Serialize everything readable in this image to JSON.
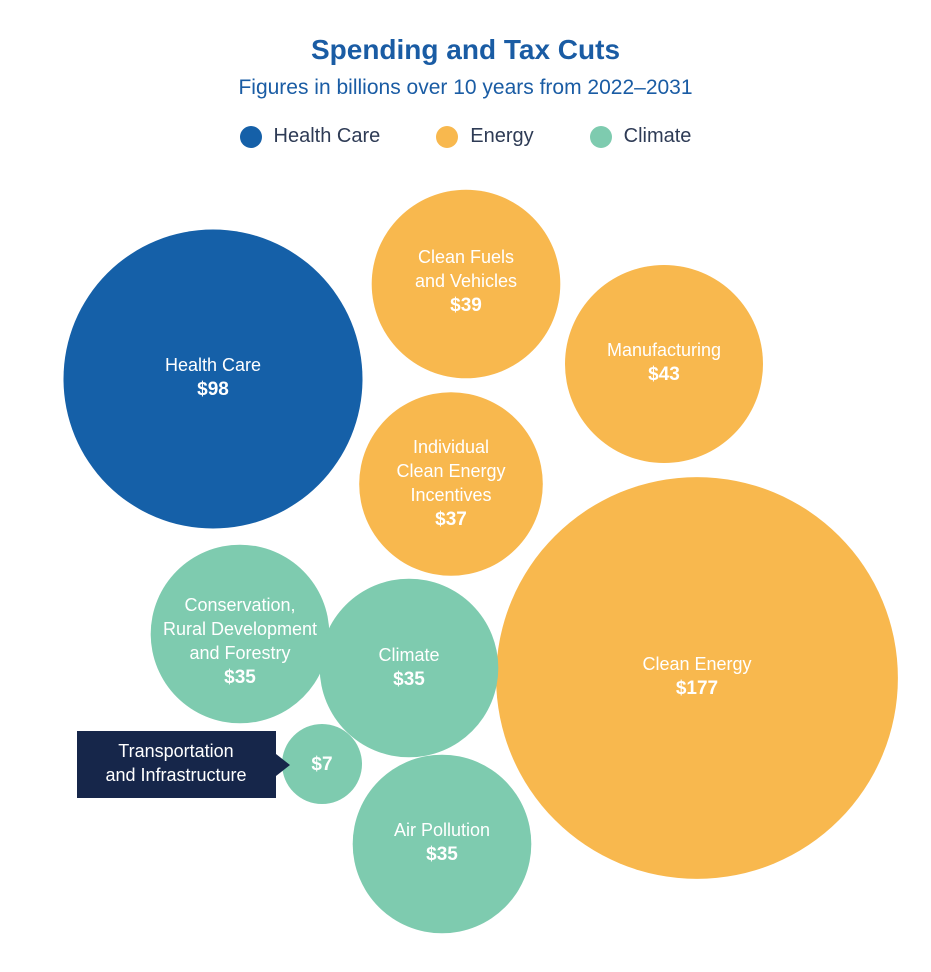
{
  "chart_data": {
    "type": "bubble",
    "title": "Spending and Tax Cuts",
    "subtitle": "Figures in billions over 10 years from 2022–2031",
    "legend_position": "top-center",
    "legend": [
      {
        "name": "Health Care",
        "color": "#1560a8"
      },
      {
        "name": "Energy",
        "color": "#f8b84e"
      },
      {
        "name": "Climate",
        "color": "#7ecbaf"
      }
    ],
    "items": [
      {
        "name": "Health Care",
        "category": "Health Care",
        "value": 98,
        "value_label": "$98"
      },
      {
        "name": "Clean Fuels and Vehicles",
        "category": "Energy",
        "value": 39,
        "value_label": "$39"
      },
      {
        "name": "Manufacturing",
        "category": "Energy",
        "value": 43,
        "value_label": "$43"
      },
      {
        "name": "Individual Clean Energy Incentives",
        "category": "Energy",
        "value": 37,
        "value_label": "$37"
      },
      {
        "name": "Clean Energy",
        "category": "Energy",
        "value": 177,
        "value_label": "$177"
      },
      {
        "name": "Conservation, Rural Development and Forestry",
        "category": "Climate",
        "value": 35,
        "value_label": "$35"
      },
      {
        "name": "Climate",
        "category": "Climate",
        "value": 35,
        "value_label": "$35"
      },
      {
        "name": "Transportation and Infrastructure",
        "category": "Climate",
        "value": 7,
        "value_label": "$7"
      },
      {
        "name": "Air Pollution",
        "category": "Climate",
        "value": 35,
        "value_label": "$35"
      }
    ]
  }
}
